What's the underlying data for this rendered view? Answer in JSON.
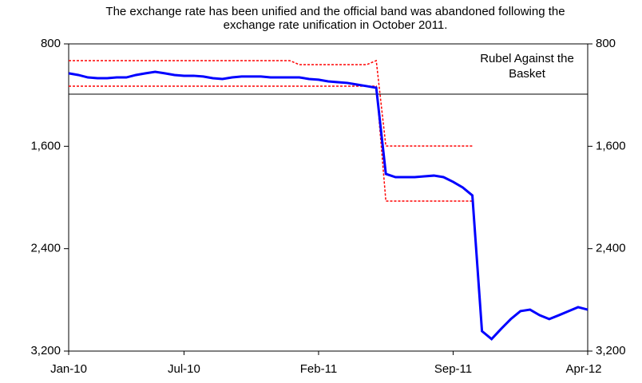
{
  "chart_data": {
    "type": "line",
    "title": "The exchange rate has been unified and the official band was abandoned following the exchange rate unification in October 2011.",
    "categories": [
      "Jan-10",
      null,
      null,
      null,
      null,
      null,
      null,
      null,
      null,
      null,
      null,
      null,
      "Jul-10",
      null,
      null,
      null,
      null,
      null,
      null,
      null,
      null,
      null,
      null,
      null,
      null,
      null,
      "Feb-11",
      null,
      null,
      null,
      null,
      null,
      null,
      null,
      null,
      null,
      null,
      null,
      null,
      null,
      "Sep-11",
      null,
      null,
      null,
      null,
      null,
      null,
      null,
      null,
      null,
      null,
      null,
      null,
      null,
      "Apr-12"
    ],
    "series": [
      {
        "name": "Rubel Against the Basket",
        "color": "#0000ff",
        "values": [
          1030,
          1043,
          1062,
          1068,
          1068,
          1062,
          1062,
          1043,
          1030,
          1018,
          1030,
          1043,
          1049,
          1049,
          1055,
          1068,
          1074,
          1062,
          1055,
          1055,
          1055,
          1062,
          1062,
          1062,
          1062,
          1074,
          1080,
          1093,
          1099,
          1105,
          1118,
          1130,
          1143,
          1816,
          1841,
          1841,
          1841,
          1835,
          1829,
          1841,
          1878,
          1922,
          1984,
          3044,
          3106,
          3026,
          2950,
          2888,
          2876,
          2920,
          2950,
          2920,
          2888,
          2857,
          2876
        ]
      },
      {
        "color": "#ff0000",
        "values": [
          931,
          931,
          931,
          931,
          931,
          931,
          931,
          931,
          931,
          931,
          931,
          931,
          931,
          931,
          931,
          931,
          931,
          931,
          931,
          931,
          931,
          931,
          931,
          931,
          962,
          962,
          962,
          962,
          962,
          962,
          962,
          962,
          931,
          1598,
          1598,
          1598,
          1598,
          1598,
          1598,
          1598,
          1598,
          1598,
          1598,
          null,
          null,
          null,
          null,
          null,
          null,
          null,
          null,
          null,
          null,
          null,
          null
        ]
      },
      {
        "color": "#ff0000",
        "values": [
          1130,
          1130,
          1130,
          1130,
          1130,
          1130,
          1130,
          1130,
          1130,
          1130,
          1130,
          1130,
          1130,
          1130,
          1130,
          1130,
          1130,
          1130,
          1130,
          1130,
          1130,
          1130,
          1130,
          1130,
          1130,
          1130,
          1130,
          1130,
          1130,
          1130,
          1130,
          1130,
          1130,
          2028,
          2028,
          2028,
          2028,
          2028,
          2028,
          2028,
          2028,
          2028,
          2028,
          null,
          null,
          null,
          null,
          null,
          null,
          null,
          null,
          null,
          null,
          null,
          null
        ]
      }
    ],
    "ylim": [
      800,
      3200
    ],
    "yticks": [
      800,
      {
        "value": 1600,
        "label": "1,600"
      },
      {
        "value": 2400,
        "label": "2,400"
      },
      {
        "value": 3200,
        "label": "3,200"
      }
    ],
    "y2lim": [
      800,
      3200
    ],
    "y2ticks": [
      800,
      {
        "value": 1600,
        "label": "1,600"
      },
      {
        "value": 2400,
        "label": "2,400"
      },
      {
        "value": 3200,
        "label": "3,200"
      }
    ],
    "y_inverted": true
  }
}
